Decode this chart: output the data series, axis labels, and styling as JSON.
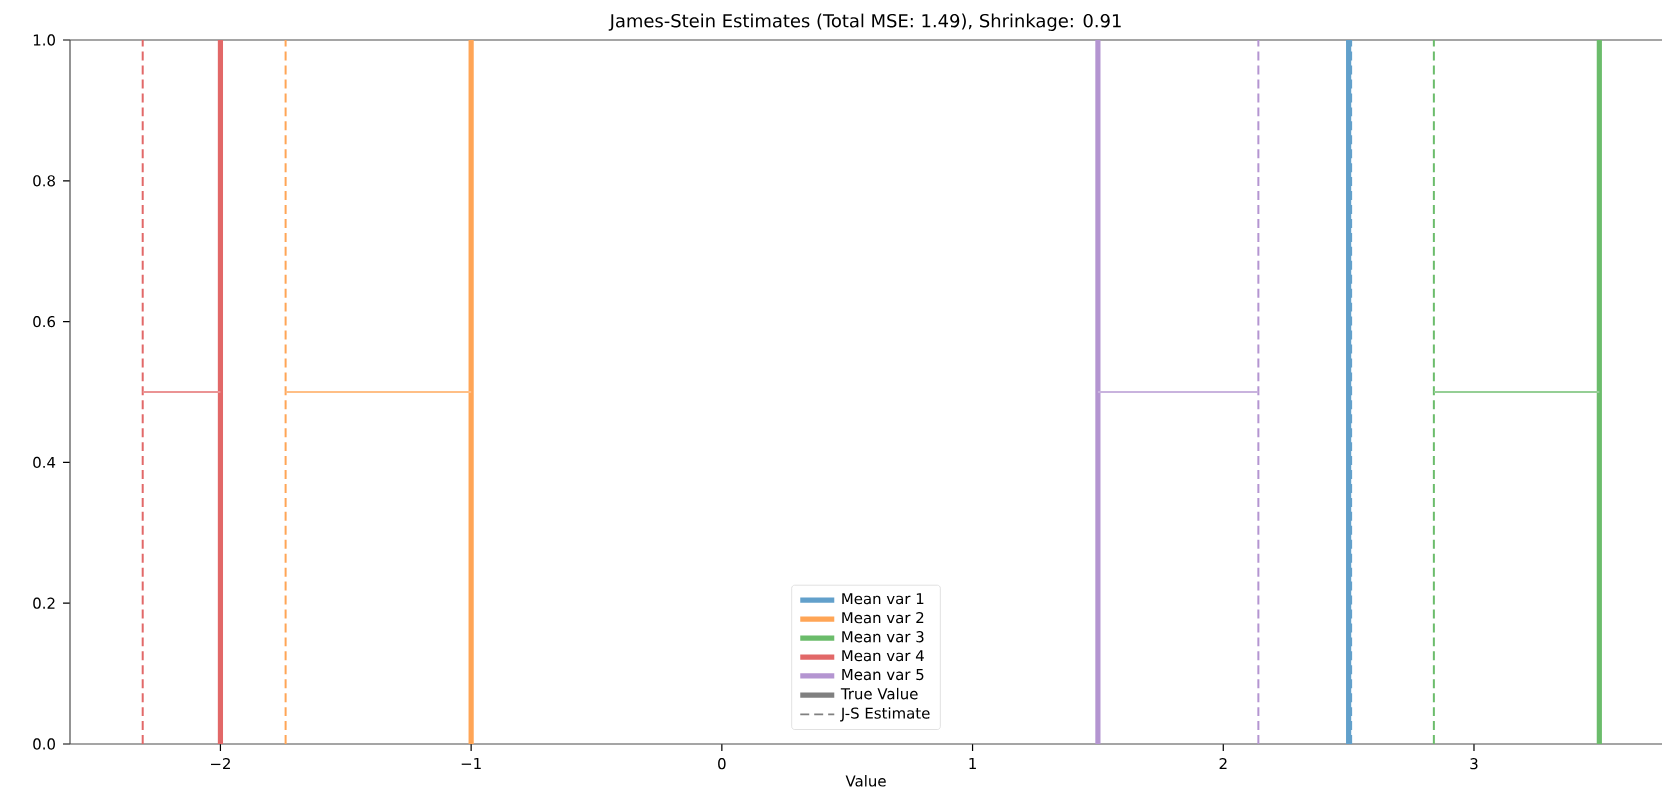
{
  "chart_data": {
    "type": "line",
    "title": "James-Stein Estimates (Total MSE: 1.49), Shrinkage: 0.91",
    "xlabel": "Value",
    "xlim": [
      -2.6,
      3.75
    ],
    "ylim": [
      0,
      1
    ],
    "xticks": [
      {
        "value": -2,
        "label": "−2"
      },
      {
        "value": -1,
        "label": "−1"
      },
      0,
      1,
      2,
      3
    ],
    "yticks": [
      {
        "value": 0,
        "label": "0.0"
      },
      {
        "value": 0.2,
        "label": "0.2"
      },
      {
        "value": 0.4,
        "label": "0.4"
      },
      {
        "value": 0.6,
        "label": "0.6"
      },
      {
        "value": 0.8,
        "label": "0.8"
      },
      {
        "value": 1,
        "label": "1.0"
      }
    ],
    "legend": "bottom",
    "grid": false,
    "series": [
      {
        "name": "Mean var 1",
        "color": "#62a0cb",
        "line_style": "solid",
        "x": [
          2.5,
          2.5
        ],
        "values": [
          0,
          1
        ]
      },
      {
        "color": "#62a0cb",
        "line_style": "dashed",
        "x": [
          2.51,
          2.51
        ],
        "values": [
          0,
          1
        ]
      },
      {
        "name": "Mean var 2",
        "color": "#ffa556",
        "line_style": "solid",
        "x": [
          -1,
          -1
        ],
        "values": [
          0,
          1
        ]
      },
      {
        "color": "#ffa556",
        "line_style": "dashed",
        "x": [
          -1.74,
          -1.74
        ],
        "values": [
          0,
          1
        ]
      },
      {
        "color": "#ffbf86",
        "line_style": "solid",
        "x": [
          -1,
          -1.74
        ],
        "values": [
          0.5,
          0.5
        ]
      },
      {
        "name": "Mean var 3",
        "color": "#6bbc6b",
        "line_style": "solid",
        "x": [
          3.5,
          3.5
        ],
        "values": [
          0,
          1
        ]
      },
      {
        "color": "#6bbc6b",
        "line_style": "dashed",
        "x": [
          2.84,
          2.84
        ],
        "values": [
          0,
          1
        ]
      },
      {
        "color": "#95cf95",
        "line_style": "solid",
        "x": [
          3.5,
          2.84
        ],
        "values": [
          0.5,
          0.5
        ]
      },
      {
        "name": "Mean var 4",
        "color": "#e26868",
        "line_style": "solid",
        "x": [
          -2,
          -2
        ],
        "values": [
          0,
          1
        ]
      },
      {
        "color": "#e26868",
        "line_style": "dashed",
        "x": [
          -2.31,
          -2.31
        ],
        "values": [
          0,
          1
        ]
      },
      {
        "color": "#eb9394",
        "line_style": "solid",
        "x": [
          -2,
          -2.31
        ],
        "values": [
          0.5,
          0.5
        ]
      },
      {
        "name": "Mean var 5",
        "color": "#b495d1",
        "line_style": "solid",
        "x": [
          1.5,
          1.5
        ],
        "values": [
          0,
          1
        ]
      },
      {
        "color": "#b495d1",
        "line_style": "dashed",
        "x": [
          2.14,
          2.14
        ],
        "values": [
          0,
          1
        ]
      },
      {
        "color": "#c9b3de",
        "line_style": "solid",
        "x": [
          1.5,
          2.14
        ],
        "values": [
          0.5,
          0.5
        ]
      },
      {
        "name": "True Value",
        "color": "#808080",
        "line_style": "solid"
      },
      {
        "name": "J-S Estimate",
        "color": "#808080",
        "line_style": "dashed"
      }
    ]
  }
}
